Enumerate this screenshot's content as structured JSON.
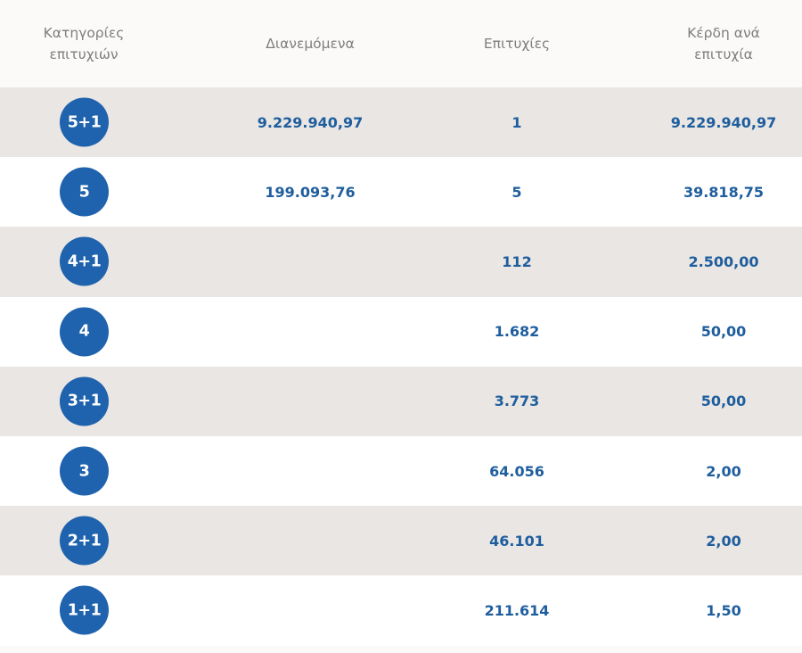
{
  "header": {
    "category": "Κατηγορίες\nεπιτυχιών",
    "distributed": "Διανεμόμενα",
    "winners": "Επιτυχίες",
    "prize_per_winner": "Κέρδη ανά\nεπιτυχία"
  },
  "rows": [
    {
      "category": "5+1",
      "distributed": "9.229.940,97",
      "winners": "1",
      "prize": "9.229.940,97"
    },
    {
      "category": "5",
      "distributed": "199.093,76",
      "winners": "5",
      "prize": "39.818,75"
    },
    {
      "category": "4+1",
      "distributed": "",
      "winners": "112",
      "prize": "2.500,00"
    },
    {
      "category": "4",
      "distributed": "",
      "winners": "1.682",
      "prize": "50,00"
    },
    {
      "category": "3+1",
      "distributed": "",
      "winners": "3.773",
      "prize": "50,00"
    },
    {
      "category": "3",
      "distributed": "",
      "winners": "64.056",
      "prize": "2,00"
    },
    {
      "category": "2+1",
      "distributed": "",
      "winners": "46.101",
      "prize": "2,00"
    },
    {
      "category": "1+1",
      "distributed": "",
      "winners": "211.614",
      "prize": "1,50"
    }
  ],
  "colors": {
    "badge": "#1f62ad",
    "value_text": "#1f5e9e",
    "header_text": "#7e7e7e",
    "row_shade": "#e9e6e3",
    "row_plain": "#ffffff"
  }
}
